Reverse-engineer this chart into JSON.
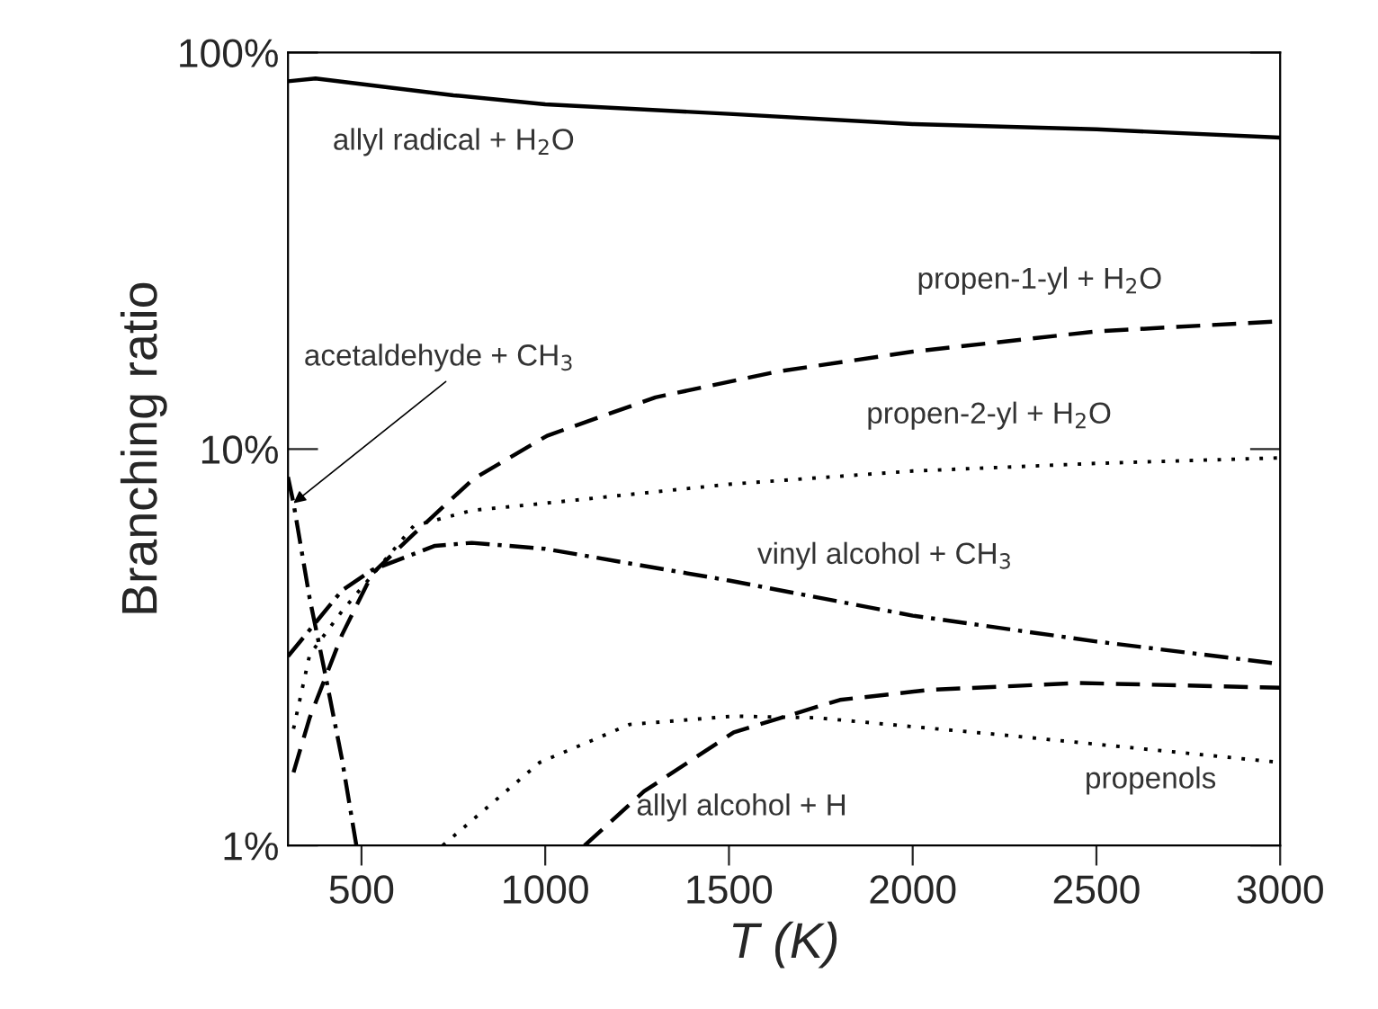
{
  "chart_data": {
    "type": "line",
    "xlabel": "T (K)",
    "ylabel": "Branching ratio",
    "xlim": [
      300,
      3000
    ],
    "xticks": [
      500,
      1000,
      1500,
      2000,
      2500,
      3000
    ],
    "ylim": [
      1,
      100
    ],
    "yticks": [
      {
        "value": 1,
        "label": "1%"
      },
      {
        "value": 10,
        "label": "10%"
      },
      {
        "value": 100,
        "label": "100%"
      }
    ],
    "log": "y",
    "grid": false,
    "legend": false,
    "marker": "none",
    "series": [
      {
        "color": "#000000",
        "line_style": "solid",
        "x": [
          300,
          375,
          750,
          1000,
          1500,
          2000,
          2500,
          3000
        ],
        "values": [
          84.6,
          86,
          78,
          74,
          70,
          66,
          64,
          61
        ]
      },
      {
        "color": "#000000",
        "line_style": "dashed",
        "x": [
          315,
          359,
          447,
          530,
          642,
          804,
          1005,
          1300,
          1636,
          2000,
          2500,
          3000
        ],
        "values": [
          1.53,
          2.1,
          3.4,
          4.86,
          6.1,
          8.4,
          10.8,
          13.5,
          15.7,
          17.6,
          19.8,
          21
        ]
      },
      {
        "color": "#000000",
        "line_style": "dotted",
        "x": [
          315,
          359,
          447,
          642,
          800,
          1000,
          1500,
          2000,
          2500,
          3000
        ],
        "values": [
          1.97,
          3.03,
          3.9,
          6.4,
          7.0,
          7.3,
          8.15,
          8.8,
          9.2,
          9.5
        ]
      },
      {
        "color": "#000000",
        "line_style": "dashdot",
        "x": [
          300,
          447,
          530,
          700,
          800,
          1000,
          1500,
          2000,
          2500,
          3000
        ],
        "values": [
          3.0,
          4.4,
          4.96,
          5.7,
          5.8,
          5.6,
          4.66,
          3.8,
          3.27,
          2.87
        ]
      },
      {
        "color": "#000000",
        "line_style": "dashdot",
        "x": [
          300,
          315,
          359,
          398,
          447,
          486
        ],
        "values": [
          8.5,
          7.3,
          4.2,
          2.8,
          1.65,
          1.0
        ]
      },
      {
        "color": "#000000",
        "line_style": "dotted",
        "x": [
          721,
          985,
          1230,
          1513,
          1738,
          2247,
          3000
        ],
        "values": [
          1.0,
          1.62,
          2.02,
          2.12,
          2.1,
          1.9,
          1.62
        ]
      },
      {
        "color": "#000000",
        "line_style": "dashed",
        "x": [
          1107,
          1269,
          1513,
          1802,
          2047,
          2453,
          3000
        ],
        "values": [
          1.0,
          1.37,
          1.93,
          2.33,
          2.47,
          2.57,
          2.5
        ]
      }
    ],
    "annotations": [
      "allyl radical + H$_{2}$O",
      "propen-1-yl + H$_{2}$O",
      {
        "text": "acetaldehyde + CH$_{3}$",
        "x": 315,
        "y": 7.3
      },
      "propen-2-yl + H$_{2}$O",
      "vinyl alcohol + CH$_{3}$",
      "propenols",
      "allyl alcohol + H"
    ]
  }
}
